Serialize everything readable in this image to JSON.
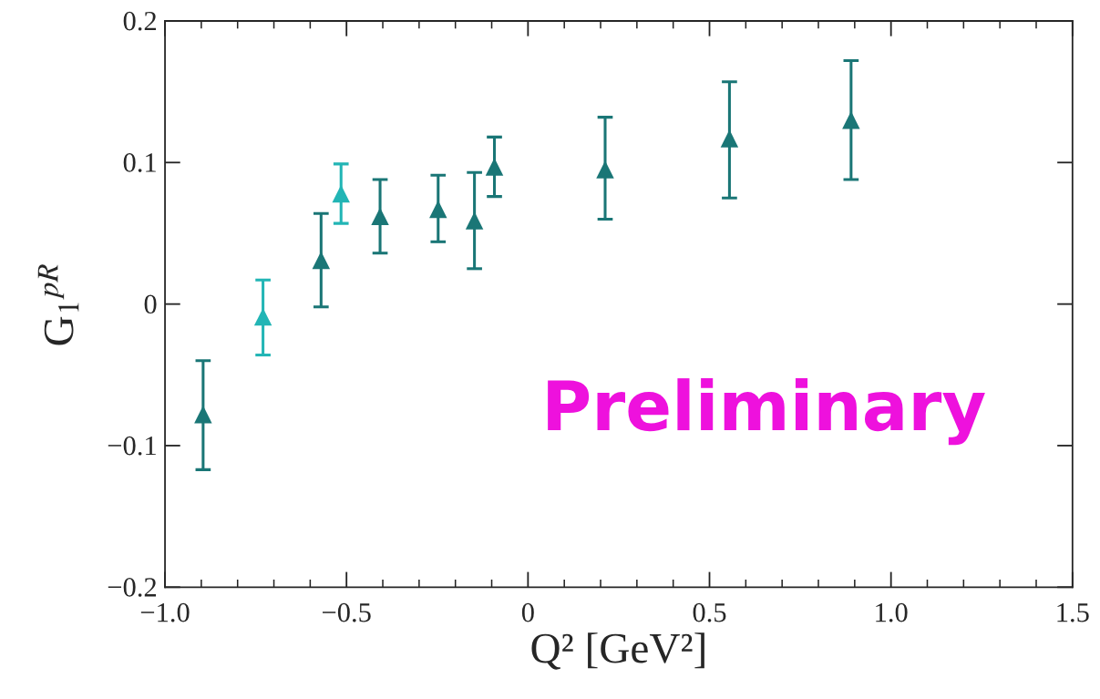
{
  "chart_data": {
    "type": "scatter",
    "xlabel": "Q² [GeV²]",
    "ylabel": "G$_{1}$$^{pR}$",
    "xlim": [
      -1.0,
      1.5
    ],
    "xticks": [
      {
        "value": -1.0,
        "label": "−1.0"
      },
      {
        "value": -0.5,
        "label": "−0.5"
      },
      0,
      0.5,
      {
        "value": 1.0,
        "label": "1.0"
      },
      1.5
    ],
    "ylim": [
      -0.2,
      0.2
    ],
    "yticks": [
      -0.2,
      -0.1,
      0,
      0.1,
      0.2
    ],
    "grid": false,
    "series": [
      {
        "color": "#1a7676",
        "marker": "triangle",
        "x": [
          -0.895,
          -0.57,
          -0.4075,
          -0.2475,
          -0.1475,
          -0.0925,
          0.2125,
          0.555,
          0.89
        ],
        "values": [
          -0.078,
          0.031,
          0.062,
          0.067,
          0.059,
          0.097,
          0.095,
          0.117,
          0.13
        ],
        "errors": [
          [
            -0.117,
            -0.04
          ],
          [
            -0.002,
            0.064
          ],
          [
            0.036,
            0.088
          ],
          [
            0.044,
            0.091
          ],
          [
            0.025,
            0.093
          ],
          [
            0.076,
            0.118
          ],
          [
            0.06,
            0.132
          ],
          [
            0.075,
            0.157
          ],
          [
            0.088,
            0.172
          ]
        ]
      },
      {
        "color": "#22b5b5",
        "marker": "triangle",
        "x": [
          -0.73,
          -0.515
        ],
        "values": [
          -0.009,
          0.078
        ],
        "errors": [
          [
            -0.036,
            0.017
          ],
          [
            0.057,
            0.099
          ]
        ]
      }
    ],
    "annotations": [
      "Preliminary"
    ]
  }
}
